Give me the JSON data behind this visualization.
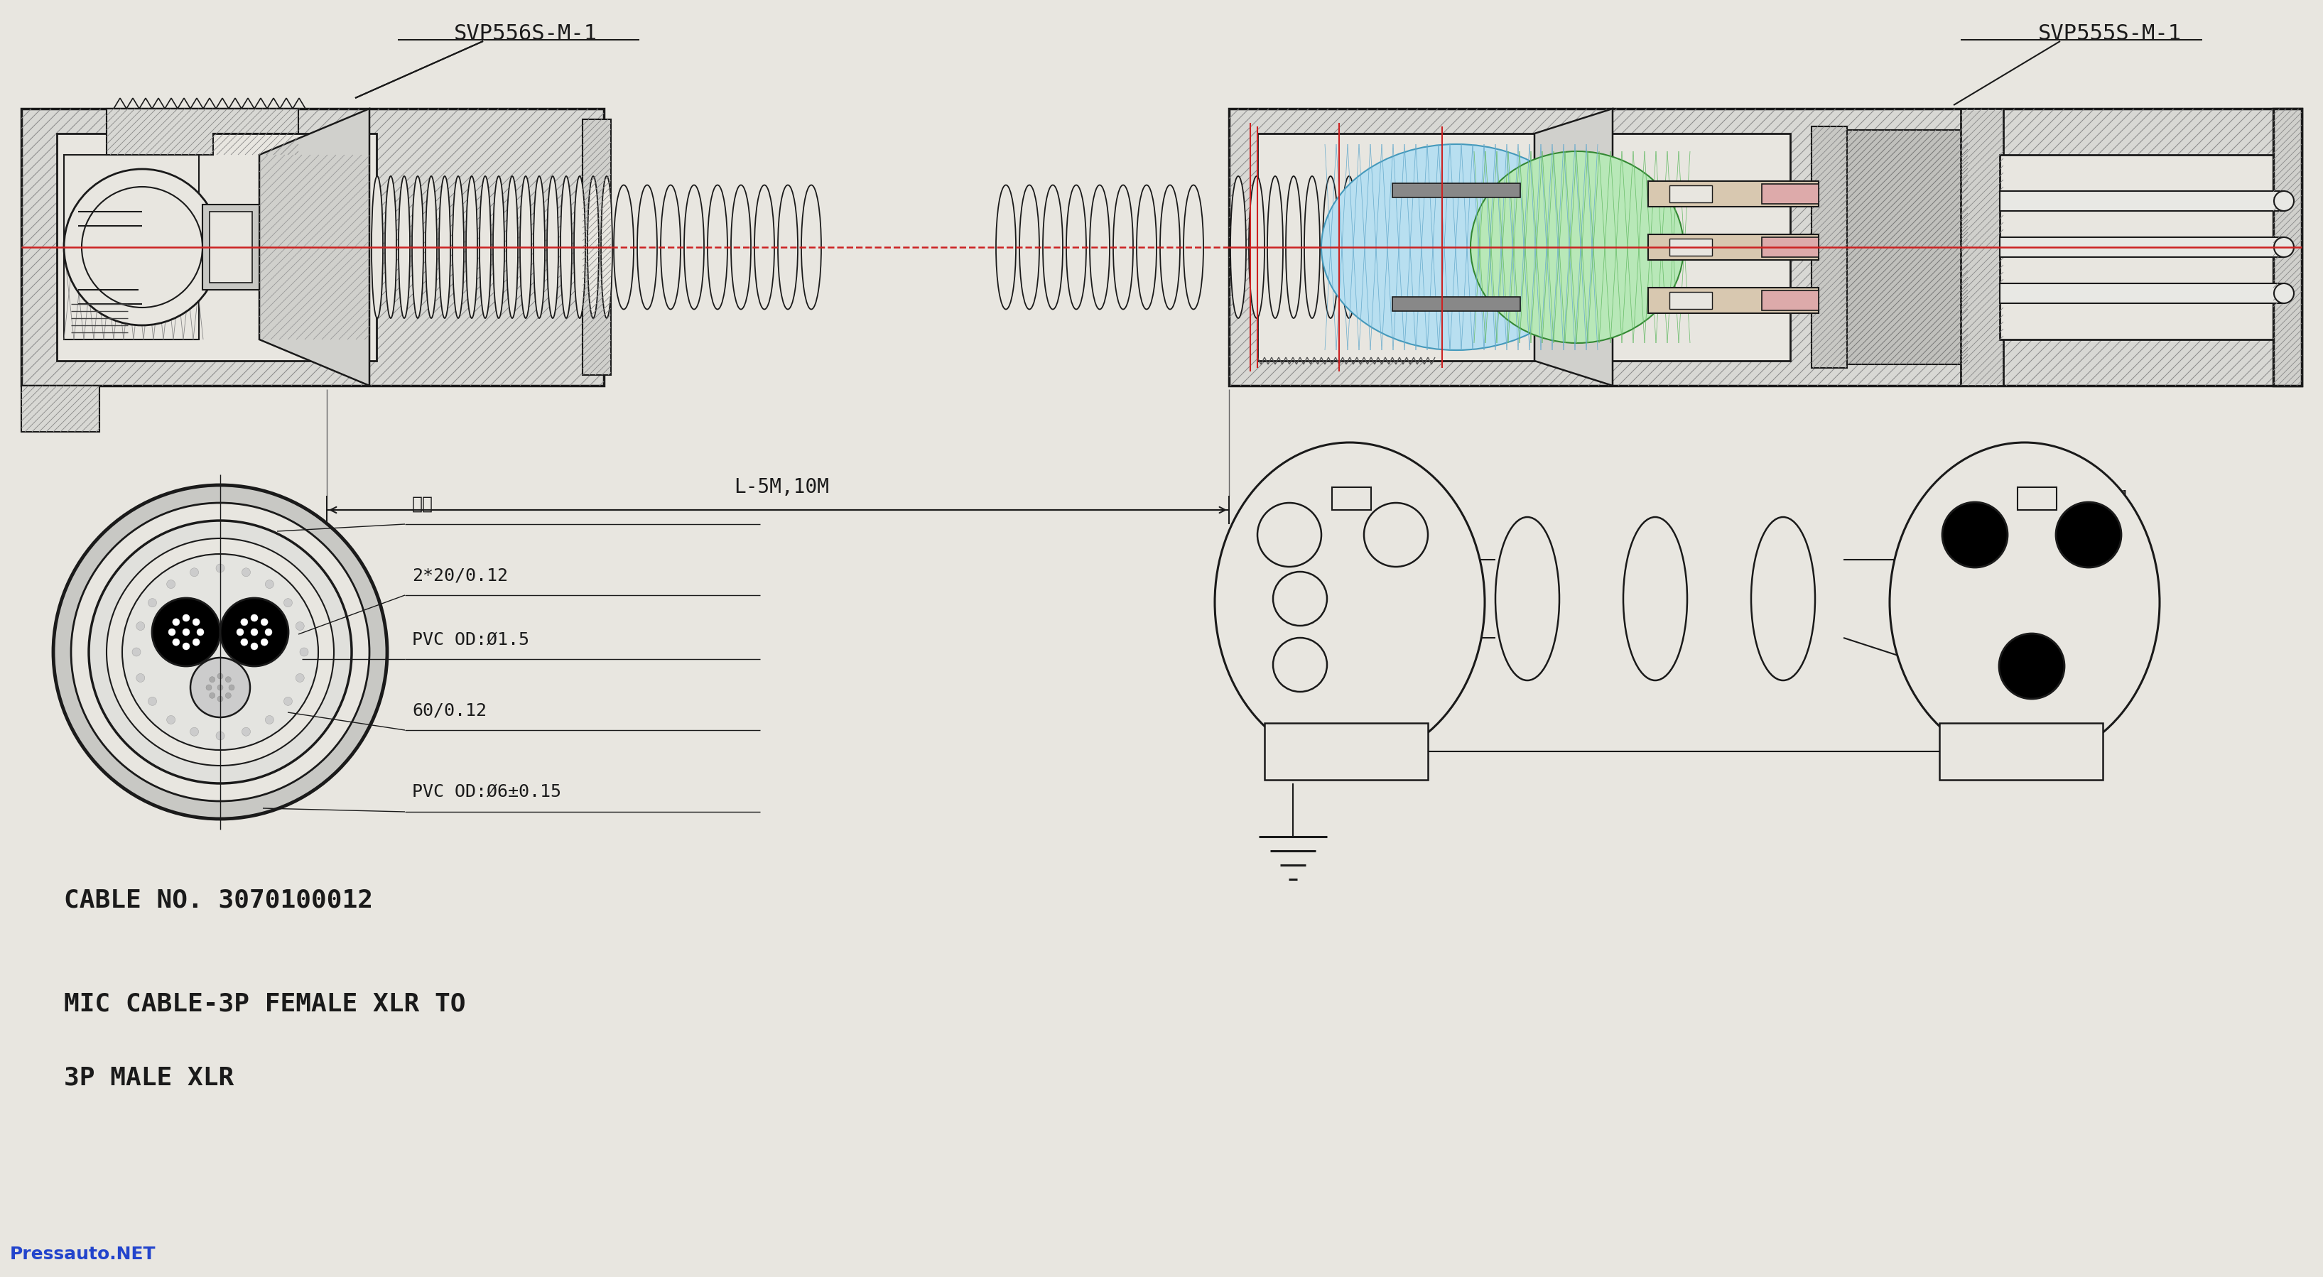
{
  "bg_color": "#e8e6e0",
  "title_label1": "SVP556S-M-1",
  "title_label2": "SVP555S-M-1",
  "dimension_label": "L-5M,10M",
  "cable_no": "CABLE NO. 3070100012",
  "cable_desc1": "MIC CABLE-3P FEMALE XLR TO",
  "cable_desc2": "3P MALE XLR",
  "label_cotton": "棉线",
  "label_2x20": "2*20/0.12",
  "label_pvc15": "PVC OD:Ø1.5",
  "label_60012": "60/0.12",
  "label_pvc6": "PVC OD:Ø6±0.15",
  "watermark": "Pressauto.NET",
  "line_color": "#1a1a1a",
  "red_color": "#cc2222",
  "blue_color": "#66bbdd",
  "green_color": "#66bb66",
  "hatch_color": "#555555"
}
